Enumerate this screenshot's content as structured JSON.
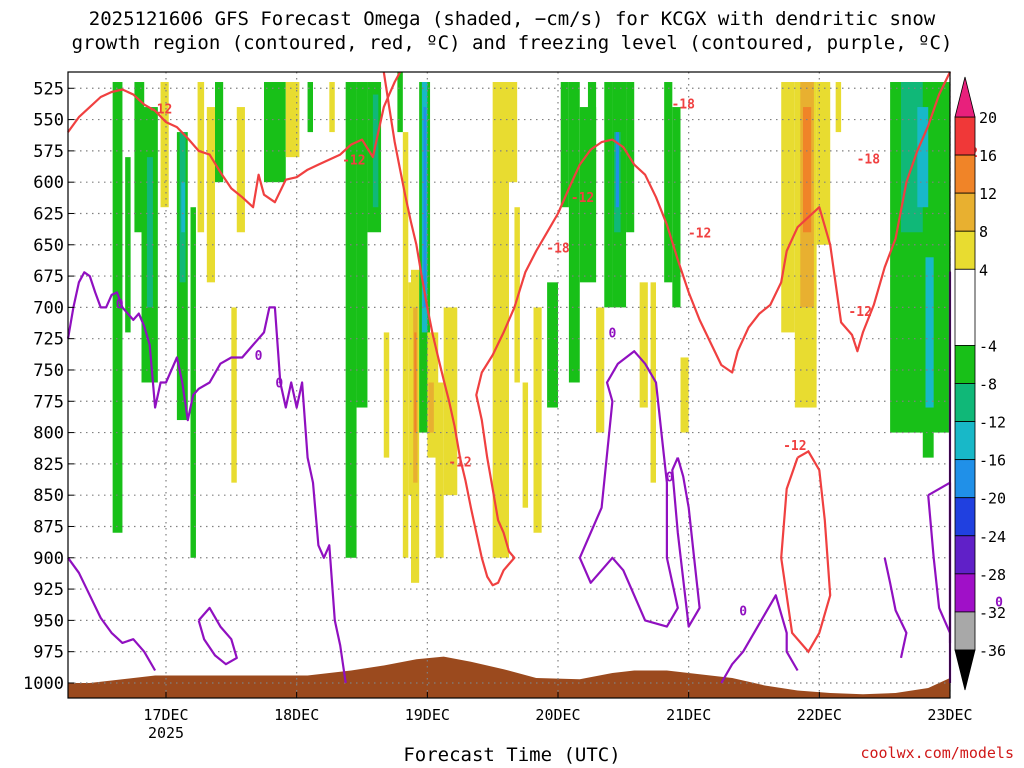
{
  "header": {
    "title_line1": "2025121606 GFS Forecast Omega (shaded, −cm/s) for KCGX with dendritic snow",
    "title_line2": "growth region (contoured, red, ºC) and freezing level (contoured, purple, ºC)"
  },
  "footer": {
    "xlabel": "Forecast Time (UTC)",
    "credit": "coolwx.com/models"
  },
  "colors": {
    "terrain": "#9b4a1e",
    "dgz_line": "#f04040",
    "freezing_line": "#9010c0",
    "grid": "#808080"
  },
  "chart_data": {
    "type": "heatmap",
    "title": "2025121606 GFS Forecast Omega (shaded, −cm/s) for KCGX",
    "xlabel": "Forecast Time (UTC)",
    "ylabel": "Pressure (hPa)",
    "x_range_hours_from_16DEC00Z": [
      6,
      168
    ],
    "y_range_hPa": [
      1012,
      512
    ],
    "y_ticks": [
      525,
      550,
      575,
      600,
      625,
      650,
      675,
      700,
      725,
      750,
      775,
      800,
      825,
      850,
      875,
      900,
      925,
      950,
      975,
      1000
    ],
    "x_ticks": [
      {
        "label": "17DEC",
        "hour": 24
      },
      {
        "label": "18DEC",
        "hour": 48
      },
      {
        "label": "19DEC",
        "hour": 72
      },
      {
        "label": "20DEC",
        "hour": 96
      },
      {
        "label": "21DEC",
        "hour": 120
      },
      {
        "label": "22DEC",
        "hour": 144
      },
      {
        "label": "23DEC",
        "hour": 168
      }
    ],
    "x_year_label": "2025",
    "colorbar": {
      "ticks": [
        20,
        16,
        12,
        8,
        4,
        -4,
        -8,
        -12,
        -16,
        -20,
        -24,
        -28,
        -32,
        -36
      ],
      "segments": [
        {
          "from": 16,
          "to": 20,
          "color": "#f03838"
        },
        {
          "from": 12,
          "to": 16,
          "color": "#f08428"
        },
        {
          "from": 8,
          "to": 12,
          "color": "#e8b030"
        },
        {
          "from": 4,
          "to": 8,
          "color": "#e8dc30"
        },
        {
          "from": -4,
          "to": 4,
          "color": "#ffffff"
        },
        {
          "from": -8,
          "to": -4,
          "color": "#18c018"
        },
        {
          "from": -12,
          "to": -8,
          "color": "#10b878"
        },
        {
          "from": -16,
          "to": -12,
          "color": "#18b8c8"
        },
        {
          "from": -20,
          "to": -16,
          "color": "#2090e8"
        },
        {
          "from": -24,
          "to": -20,
          "color": "#2040e0"
        },
        {
          "from": -28,
          "to": -24,
          "color": "#6020c8"
        },
        {
          "from": -32,
          "to": -28,
          "color": "#a010c8"
        },
        {
          "from": -36,
          "to": -32,
          "color": "#a8a8a8"
        }
      ],
      "top_arrow_color": "#e8207c",
      "bottom_arrow_color": "#000000"
    },
    "shading": [
      {
        "t": [
          14.2,
          16.0
        ],
        "p": [
          520,
          880
        ],
        "v": -6
      },
      {
        "t": [
          16.5,
          17.5
        ],
        "p": [
          580,
          720
        ],
        "v": -6
      },
      {
        "t": [
          18.2,
          20.0
        ],
        "p": [
          520,
          640
        ],
        "v": -6
      },
      {
        "t": [
          19.5,
          22.5
        ],
        "p": [
          540,
          760
        ],
        "v": -6
      },
      {
        "t": [
          20.5,
          21.6
        ],
        "p": [
          580,
          700
        ],
        "v": -10
      },
      {
        "t": [
          23.0,
          24.5
        ],
        "p": [
          520,
          620
        ],
        "v": 5
      },
      {
        "t": [
          26.0,
          28.0
        ],
        "p": [
          560,
          790
        ],
        "v": -6
      },
      {
        "t": [
          26.5,
          27.6
        ],
        "p": [
          560,
          680
        ],
        "v": -10
      },
      {
        "t": [
          26.8,
          27.5
        ],
        "p": [
          600,
          640
        ],
        "v": -14
      },
      {
        "t": [
          28.5,
          29.5
        ],
        "p": [
          620,
          900
        ],
        "v": -6
      },
      {
        "t": [
          29.8,
          31.0
        ],
        "p": [
          520,
          640
        ],
        "v": 5
      },
      {
        "t": [
          31.5,
          33.0
        ],
        "p": [
          540,
          680
        ],
        "v": 5
      },
      {
        "t": [
          33.0,
          34.5
        ],
        "p": [
          520,
          600
        ],
        "v": -6
      },
      {
        "t": [
          36.0,
          37.0
        ],
        "p": [
          700,
          840
        ],
        "v": 5
      },
      {
        "t": [
          37.0,
          38.5
        ],
        "p": [
          540,
          640
        ],
        "v": 5
      },
      {
        "t": [
          42.0,
          46.0
        ],
        "p": [
          520,
          600
        ],
        "v": -6
      },
      {
        "t": [
          46.0,
          48.5
        ],
        "p": [
          520,
          580
        ],
        "v": 5
      },
      {
        "t": [
          50.0,
          51.0
        ],
        "p": [
          520,
          560
        ],
        "v": -6
      },
      {
        "t": [
          54.0,
          55.0
        ],
        "p": [
          520,
          560
        ],
        "v": 5
      },
      {
        "t": [
          57.0,
          59.0
        ],
        "p": [
          520,
          900
        ],
        "v": -6
      },
      {
        "t": [
          59.0,
          61.0
        ],
        "p": [
          520,
          780
        ],
        "v": -6
      },
      {
        "t": [
          61.0,
          63.5
        ],
        "p": [
          520,
          640
        ],
        "v": -6
      },
      {
        "t": [
          62.0,
          63.0
        ],
        "p": [
          530,
          620
        ],
        "v": -10
      },
      {
        "t": [
          64.0,
          65.0
        ],
        "p": [
          720,
          820
        ],
        "v": 5
      },
      {
        "t": [
          66.5,
          67.5
        ],
        "p": [
          500,
          560
        ],
        "v": -6
      },
      {
        "t": [
          67.5,
          68.5
        ],
        "p": [
          560,
          900
        ],
        "v": 5
      },
      {
        "t": [
          68.5,
          69.5
        ],
        "p": [
          680,
          850
        ],
        "v": 5
      },
      {
        "t": [
          69.0,
          70.5
        ],
        "p": [
          670,
          920
        ],
        "v": 5
      },
      {
        "t": [
          69.4,
          70.2
        ],
        "p": [
          700,
          840
        ],
        "v": 10
      },
      {
        "t": [
          69.6,
          70.0
        ],
        "p": [
          720,
          800
        ],
        "v": 14
      },
      {
        "t": [
          70.5,
          72.5
        ],
        "p": [
          520,
          800
        ],
        "v": -6
      },
      {
        "t": [
          71.0,
          72.0
        ],
        "p": [
          520,
          720
        ],
        "v": -12
      },
      {
        "t": [
          71.3,
          71.8
        ],
        "p": [
          540,
          700
        ],
        "v": -18
      },
      {
        "t": [
          72.0,
          74.0
        ],
        "p": [
          720,
          820
        ],
        "v": 5
      },
      {
        "t": [
          72.2,
          73.2
        ],
        "p": [
          760,
          800
        ],
        "v": 9
      },
      {
        "t": [
          73.5,
          75.0
        ],
        "p": [
          760,
          900
        ],
        "v": 5
      },
      {
        "t": [
          75.0,
          77.5
        ],
        "p": [
          700,
          850
        ],
        "v": 5
      },
      {
        "t": [
          84.0,
          87.0
        ],
        "p": [
          520,
          900
        ],
        "v": 5
      },
      {
        "t": [
          87.0,
          88.5
        ],
        "p": [
          520,
          600
        ],
        "v": 5
      },
      {
        "t": [
          88.0,
          89.0
        ],
        "p": [
          620,
          760
        ],
        "v": 5
      },
      {
        "t": [
          89.5,
          90.5
        ],
        "p": [
          760,
          860
        ],
        "v": 5
      },
      {
        "t": [
          91.5,
          93.0
        ],
        "p": [
          700,
          880
        ],
        "v": 5
      },
      {
        "t": [
          94.0,
          96.0
        ],
        "p": [
          680,
          780
        ],
        "v": -6
      },
      {
        "t": [
          96.5,
          98.0
        ],
        "p": [
          520,
          620
        ],
        "v": -6
      },
      {
        "t": [
          98.0,
          100.0
        ],
        "p": [
          520,
          760
        ],
        "v": -6
      },
      {
        "t": [
          100.0,
          103.0
        ],
        "p": [
          540,
          680
        ],
        "v": -6
      },
      {
        "t": [
          101.5,
          103.0
        ],
        "p": [
          520,
          600
        ],
        "v": -6
      },
      {
        "t": [
          103.0,
          104.5
        ],
        "p": [
          700,
          800
        ],
        "v": 5
      },
      {
        "t": [
          104.5,
          106.0
        ],
        "p": [
          520,
          700
        ],
        "v": -6
      },
      {
        "t": [
          106.0,
          108.5
        ],
        "p": [
          520,
          700
        ],
        "v": -6
      },
      {
        "t": [
          106.3,
          107.5
        ],
        "p": [
          560,
          640
        ],
        "v": -10
      },
      {
        "t": [
          106.6,
          107.2
        ],
        "p": [
          560,
          620
        ],
        "v": -16
      },
      {
        "t": [
          108.5,
          110.0
        ],
        "p": [
          520,
          640
        ],
        "v": -6
      },
      {
        "t": [
          111.0,
          112.5
        ],
        "p": [
          680,
          780
        ],
        "v": 5
      },
      {
        "t": [
          113.0,
          114.0
        ],
        "p": [
          680,
          840
        ],
        "v": 5
      },
      {
        "t": [
          115.5,
          117.0
        ],
        "p": [
          520,
          680
        ],
        "v": -6
      },
      {
        "t": [
          117.0,
          118.5
        ],
        "p": [
          540,
          700
        ],
        "v": -6
      },
      {
        "t": [
          118.5,
          120.0
        ],
        "p": [
          740,
          800
        ],
        "v": 5
      },
      {
        "t": [
          137.0,
          139.5
        ],
        "p": [
          520,
          720
        ],
        "v": 5
      },
      {
        "t": [
          139.5,
          143.5
        ],
        "p": [
          520,
          780
        ],
        "v": 5
      },
      {
        "t": [
          140.5,
          143.0
        ],
        "p": [
          520,
          700
        ],
        "v": 9
      },
      {
        "t": [
          141.0,
          142.5
        ],
        "p": [
          540,
          640
        ],
        "v": 13
      },
      {
        "t": [
          143.5,
          146.0
        ],
        "p": [
          520,
          650
        ],
        "v": 5
      },
      {
        "t": [
          147.0,
          148.0
        ],
        "p": [
          520,
          560
        ],
        "v": 5
      },
      {
        "t": [
          157.0,
          168.0
        ],
        "p": [
          520,
          800
        ],
        "v": -6
      },
      {
        "t": [
          163.0,
          165.0
        ],
        "p": [
          750,
          820
        ],
        "v": -6
      },
      {
        "t": [
          159.0,
          163.0
        ],
        "p": [
          520,
          640
        ],
        "v": -10
      },
      {
        "t": [
          162.0,
          164.0
        ],
        "p": [
          540,
          620
        ],
        "v": -14
      },
      {
        "t": [
          163.5,
          165.0
        ],
        "p": [
          660,
          780
        ],
        "v": -14
      },
      {
        "t": [
          168.0,
          175.0
        ],
        "p": [
          520,
          600
        ],
        "v": -6
      },
      {
        "t": [
          168.0,
          178.0
        ],
        "p": [
          600,
          830
        ],
        "v": -6
      },
      {
        "t": [
          169.0,
          175.0
        ],
        "p": [
          520,
          560
        ],
        "v": -10
      },
      {
        "t": [
          170.0,
          172.0
        ],
        "p": [
          560,
          580
        ],
        "v": -14
      },
      {
        "t": [
          176.0,
          182.0
        ],
        "p": [
          520,
          800
        ],
        "v": -6
      },
      {
        "t": [
          183.0,
          186.0
        ],
        "p": [
          520,
          580
        ],
        "v": -6
      },
      {
        "t": [
          187.0,
          190.0
        ],
        "p": [
          520,
          560
        ],
        "v": -6
      },
      {
        "t": [
          178.0,
          184.0
        ],
        "p": [
          700,
          800
        ],
        "v": -6
      },
      {
        "t": [
          180.0,
          182.0
        ],
        "p": [
          860,
          960
        ],
        "v": 5
      }
    ],
    "contours": {
      "freezing_level_0C": [
        [
          [
            6,
            725
          ],
          [
            7,
            700
          ],
          [
            8,
            680
          ],
          [
            9,
            672
          ],
          [
            10,
            675
          ],
          [
            11,
            688
          ],
          [
            12,
            700
          ],
          [
            13,
            700
          ],
          [
            14,
            690
          ],
          [
            15,
            688
          ],
          [
            16,
            700
          ],
          [
            18,
            710
          ],
          [
            19,
            705
          ],
          [
            20,
            715
          ],
          [
            21,
            730
          ],
          [
            22,
            780
          ],
          [
            23,
            760
          ],
          [
            24,
            760
          ],
          [
            26,
            740
          ],
          [
            27,
            760
          ],
          [
            28,
            790
          ],
          [
            29,
            770
          ],
          [
            30,
            765
          ],
          [
            32,
            760
          ],
          [
            34,
            745
          ],
          [
            36,
            740
          ],
          [
            38,
            740
          ],
          [
            40,
            730
          ],
          [
            42,
            720
          ],
          [
            43,
            700
          ],
          [
            44,
            700
          ],
          [
            45,
            760
          ],
          [
            46,
            780
          ],
          [
            47,
            760
          ],
          [
            48,
            780
          ],
          [
            49,
            760
          ],
          [
            50,
            820
          ],
          [
            51,
            840
          ],
          [
            52,
            890
          ],
          [
            53,
            900
          ],
          [
            54,
            890
          ],
          [
            55,
            950
          ],
          [
            56,
            970
          ],
          [
            57,
            1000
          ]
        ]
      ],
      "freezing_labels": [
        {
          "t": 15.5,
          "p": 697,
          "text": "0"
        },
        {
          "t": 41.0,
          "p": 738,
          "text": "0"
        },
        {
          "t": 44.8,
          "p": 760,
          "text": "0"
        },
        {
          "t": 106.0,
          "p": 720,
          "text": "0"
        },
        {
          "t": 116.5,
          "p": 835,
          "text": "0"
        },
        {
          "t": 130.0,
          "p": 942,
          "text": "0"
        },
        {
          "t": 177.0,
          "p": 935,
          "text": "0"
        },
        {
          "t": 187.5,
          "p": 775,
          "text": "0"
        }
      ],
      "dgz_labels": [
        {
          "t": 23.0,
          "p": 541,
          "text": "-12"
        },
        {
          "t": 58.5,
          "p": 582,
          "text": "-12"
        },
        {
          "t": 96.0,
          "p": 652,
          "text": "-18"
        },
        {
          "t": 100.5,
          "p": 612,
          "text": "-12"
        },
        {
          "t": 78.0,
          "p": 823,
          "text": "-12"
        },
        {
          "t": 119.0,
          "p": 537,
          "text": "-18"
        },
        {
          "t": 122.0,
          "p": 640,
          "text": "-12"
        },
        {
          "t": 139.5,
          "p": 810,
          "text": "-12"
        },
        {
          "t": 151.5,
          "p": 703,
          "text": "-12"
        },
        {
          "t": 153.0,
          "p": 581,
          "text": "-18"
        },
        {
          "t": 171.0,
          "p": 576,
          "text": "-12"
        }
      ]
    }
  }
}
